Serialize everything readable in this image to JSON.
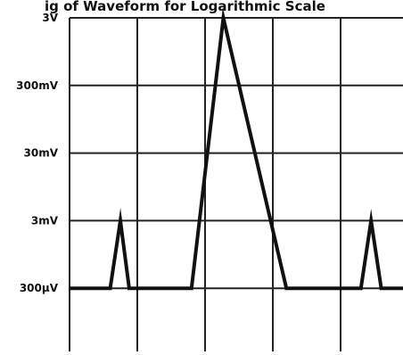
{
  "chart_data": {
    "type": "line",
    "title": "",
    "title_fragment": "ig of Waveform for Logarithmic Scale",
    "xlabel": "",
    "ylabel": "",
    "y_scale": "log",
    "y_ticks": [
      {
        "label": "3V",
        "value": 3
      },
      {
        "label": "300mV",
        "value": 0.3
      },
      {
        "label": "30mV",
        "value": 0.03
      },
      {
        "label": "3mV",
        "value": 0.003
      },
      {
        "label": "300µV",
        "value": 0.0003
      }
    ],
    "ylim": [
      3e-05,
      3
    ],
    "x_divisions": 5,
    "xlim": [
      0,
      5
    ],
    "grid": true,
    "series": [
      {
        "x": [
          0,
          0.6,
          0.75,
          0.88,
          1.8,
          2.27,
          3.2,
          4.1,
          4.3,
          4.45,
          4.6,
          5
        ],
        "y": [
          0.0003,
          0.0003,
          0.003,
          0.0003,
          0.0003,
          3,
          0.0003,
          0.0003,
          0.0003,
          0.003,
          0.0003,
          0.0003
        ]
      }
    ],
    "colors": {
      "line": "#111111",
      "grid": "#222222",
      "background": "#ffffff"
    }
  }
}
